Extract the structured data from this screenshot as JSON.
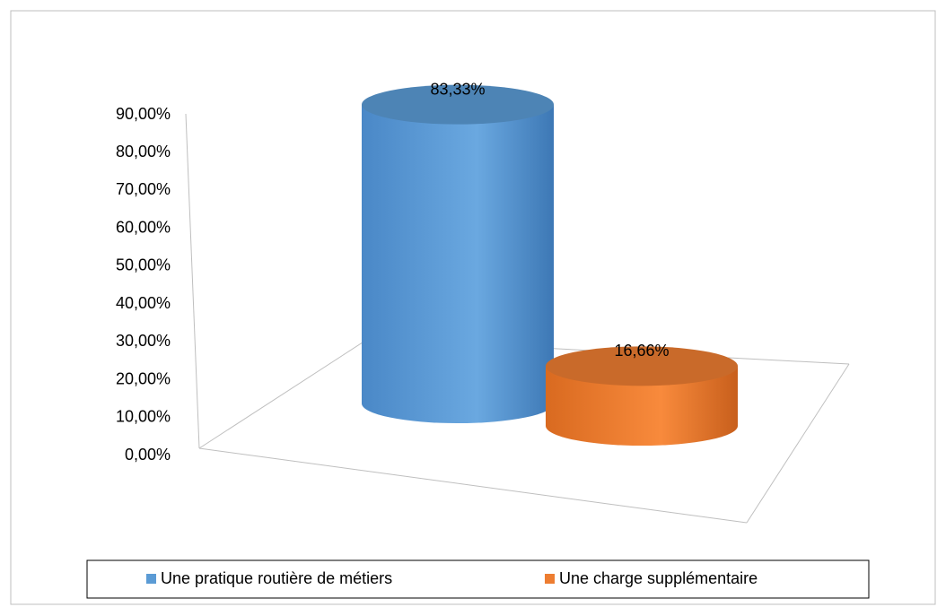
{
  "chart_data": {
    "type": "cylinder3d",
    "categories": [
      null
    ],
    "series": [
      {
        "name": "Une pratique routière de métiers",
        "color": "#5b9bd5",
        "values": [
          83.33
        ],
        "value_labels": [
          "83,33%"
        ]
      },
      {
        "name": "Une charge supplémentaire",
        "color": "#ed7d31",
        "values": [
          16.66
        ],
        "value_labels": [
          "16,66%"
        ]
      }
    ],
    "ylim": [
      0,
      90
    ],
    "yticks": [
      {
        "value": 0,
        "label": "0,00%"
      },
      {
        "value": 10,
        "label": "10,00%"
      },
      {
        "value": 20,
        "label": "20,00%"
      },
      {
        "value": 30,
        "label": "30,00%"
      },
      {
        "value": 40,
        "label": "40,00%"
      },
      {
        "value": 50,
        "label": "50,00%"
      },
      {
        "value": 60,
        "label": "60,00%"
      },
      {
        "value": 70,
        "label": "70,00%"
      },
      {
        "value": 80,
        "label": "80,00%"
      },
      {
        "value": 90,
        "label": "90,00%"
      }
    ],
    "legend": "bottom"
  }
}
